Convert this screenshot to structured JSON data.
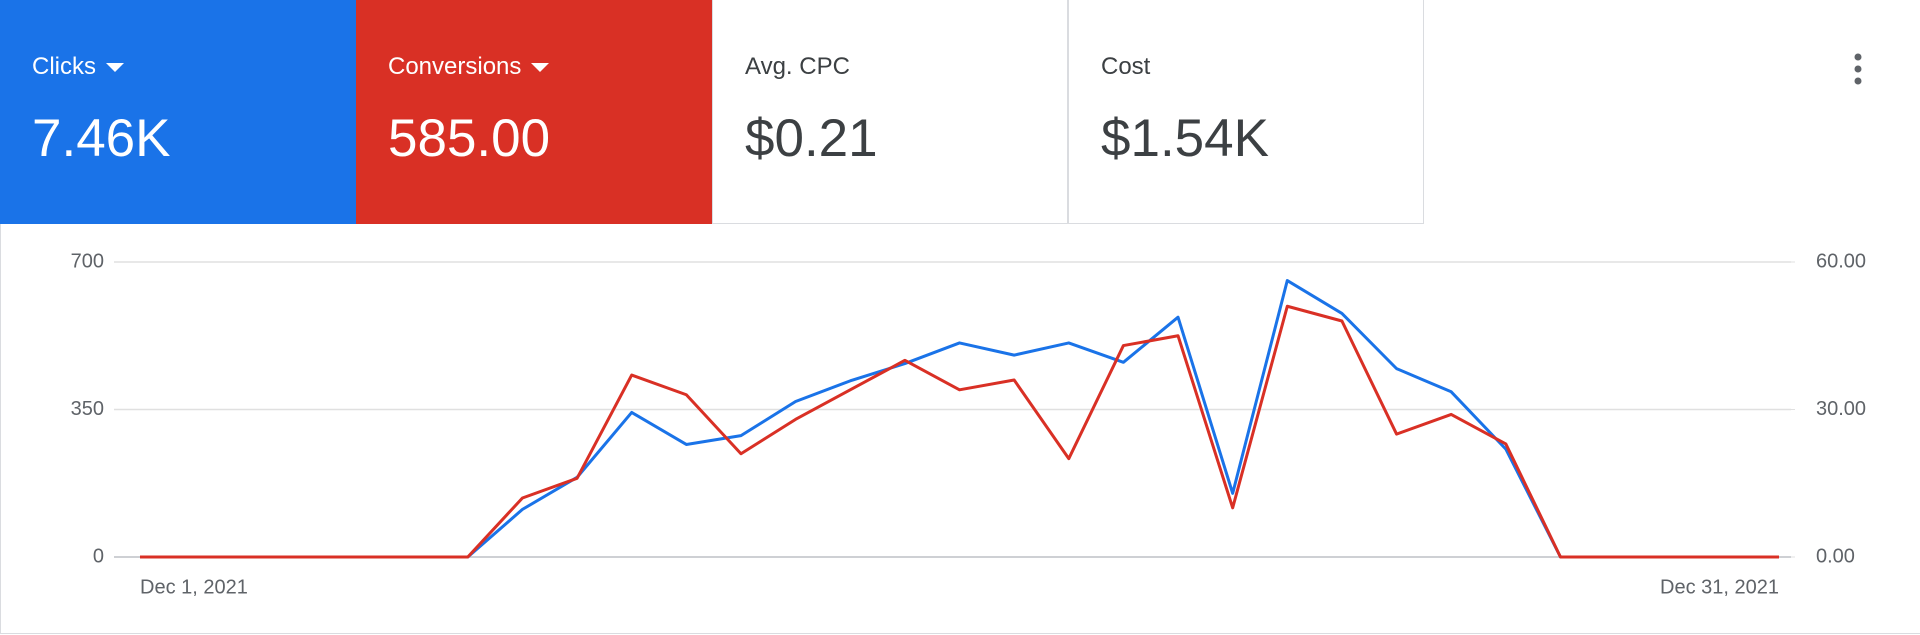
{
  "metrics": [
    {
      "label": "Avg. CPC",
      "value": "$0.21"
    },
    {
      "label": "Cost",
      "value": "$1.54K"
    }
  ],
  "chart_data": {
    "type": "line",
    "categories": [
      "Dec 1, 2021",
      null,
      null,
      null,
      null,
      null,
      null,
      null,
      null,
      null,
      null,
      null,
      null,
      null,
      null,
      null,
      null,
      null,
      null,
      null,
      null,
      null,
      null,
      null,
      null,
      null,
      null,
      null,
      null,
      null,
      "Dec 31, 2021"
    ],
    "series": [
      {
        "name": "Clicks",
        "total": "7.46K",
        "color": "#1a73e8",
        "values": [
          0,
          0,
          0,
          0,
          0,
          0,
          0,
          113,
          189,
          343,
          267,
          288,
          369,
          418,
          459,
          508,
          479,
          508,
          462,
          569,
          151,
          656,
          578,
          447,
          392,
          256,
          0,
          0,
          0,
          0,
          0
        ]
      },
      {
        "name": "Conversions",
        "total": "585.00",
        "color": "#d93025",
        "axis": "y2",
        "values": [
          0,
          0,
          0,
          0,
          0,
          0,
          0,
          12,
          16,
          37,
          33,
          21,
          28,
          34,
          40,
          34,
          36,
          20,
          43,
          45,
          10,
          51,
          48,
          25,
          29,
          23,
          0,
          0,
          0,
          0,
          0
        ]
      }
    ],
    "ylim": [
      0,
      700
    ],
    "yticks": [
      0,
      350,
      700
    ],
    "y2lim": [
      0,
      60
    ],
    "y2ticks": [
      {
        "value": 0,
        "label": "0.00"
      },
      {
        "value": 30,
        "label": "30.00"
      },
      {
        "value": 60,
        "label": "60.00"
      }
    ],
    "grid": true
  }
}
